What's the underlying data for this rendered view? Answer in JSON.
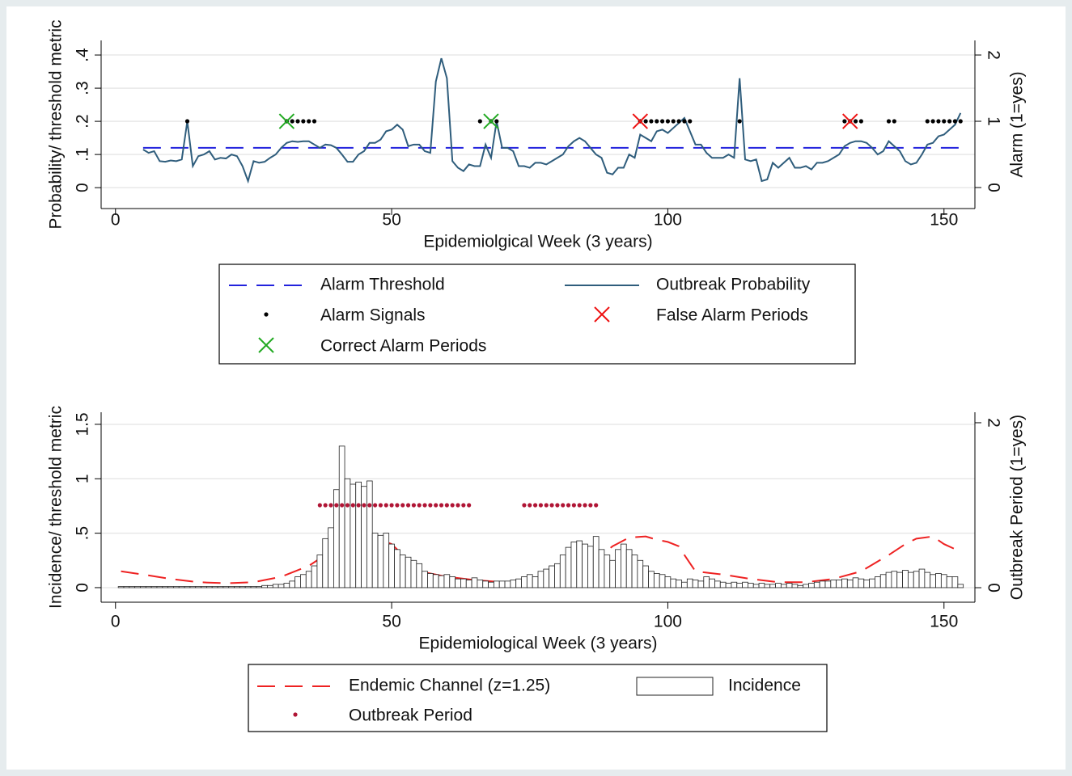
{
  "chart_data": [
    {
      "type": "combo",
      "xlabel": "Epidemiolgical Week (3 years)",
      "ylabel": "Probability/ threshold metric",
      "y2label": "Alarm (1=yes)",
      "xlim": [
        -2.6,
        155.6
      ],
      "xticks": [
        0,
        50,
        100,
        150
      ],
      "ylim": [
        -0.063,
        0.444
      ],
      "yticks": [
        0,
        {
          "value": 0.1,
          "label": ".1"
        },
        {
          "value": 0.2,
          "label": ".2"
        },
        {
          "value": 0.3,
          "label": ".3"
        },
        {
          "value": 0.4,
          "label": ".4"
        }
      ],
      "y2lim": [
        -0.317,
        2.22
      ],
      "y2ticks": [
        0,
        1,
        2
      ],
      "grid": true,
      "series": [
        {
          "name": "Alarm Threshold",
          "type": "line",
          "dash": true,
          "color": "#2222dd",
          "x": [
            5,
            153
          ],
          "values": [
            0.12,
            0.12
          ]
        },
        {
          "name": "Outbreak Probability",
          "type": "line",
          "color": "#2f5d7c",
          "x": [
            5,
            6,
            7,
            8,
            9,
            10,
            11,
            12,
            13,
            14,
            15,
            16,
            17,
            18,
            19,
            20,
            21,
            22,
            23,
            24,
            25,
            26,
            27,
            28,
            29,
            30,
            31,
            32,
            33,
            34,
            35,
            36,
            37,
            38,
            39,
            40,
            41,
            42,
            43,
            44,
            45,
            46,
            47,
            48,
            49,
            50,
            51,
            52,
            53,
            54,
            55,
            56,
            57,
            58,
            59,
            60,
            61,
            62,
            63,
            64,
            65,
            66,
            67,
            68,
            69,
            70,
            71,
            72,
            73,
            74,
            75,
            76,
            77,
            78,
            79,
            80,
            81,
            82,
            83,
            84,
            85,
            86,
            87,
            88,
            89,
            90,
            91,
            92,
            93,
            94,
            95,
            96,
            97,
            98,
            99,
            100,
            101,
            102,
            103,
            104,
            105,
            106,
            107,
            108,
            109,
            110,
            111,
            112,
            113,
            114,
            115,
            116,
            117,
            118,
            119,
            120,
            121,
            122,
            123,
            124,
            125,
            126,
            127,
            128,
            129,
            130,
            131,
            132,
            133,
            134,
            135,
            136,
            137,
            138,
            139,
            140,
            141,
            142,
            143,
            144,
            145,
            146,
            147,
            148,
            149,
            150,
            151,
            152,
            153
          ],
          "values": [
            0.115,
            0.105,
            0.11,
            0.08,
            0.078,
            0.082,
            0.08,
            0.085,
            0.2,
            0.065,
            0.095,
            0.1,
            0.11,
            0.085,
            0.09,
            0.088,
            0.1,
            0.095,
            0.065,
            0.02,
            0.08,
            0.075,
            0.078,
            0.09,
            0.1,
            0.12,
            0.135,
            0.14,
            0.138,
            0.14,
            0.14,
            0.13,
            0.12,
            0.13,
            0.128,
            0.12,
            0.1,
            0.078,
            0.078,
            0.1,
            0.11,
            0.135,
            0.135,
            0.145,
            0.17,
            0.175,
            0.19,
            0.175,
            0.125,
            0.13,
            0.13,
            0.11,
            0.105,
            0.32,
            0.39,
            0.33,
            0.08,
            0.06,
            0.05,
            0.07,
            0.065,
            0.065,
            0.13,
            0.09,
            0.2,
            0.12,
            0.12,
            0.11,
            0.065,
            0.065,
            0.06,
            0.075,
            0.075,
            0.07,
            0.08,
            0.09,
            0.1,
            0.125,
            0.14,
            0.15,
            0.14,
            0.12,
            0.1,
            0.09,
            0.045,
            0.04,
            0.06,
            0.06,
            0.1,
            0.09,
            0.16,
            0.15,
            0.14,
            0.17,
            0.175,
            0.165,
            0.18,
            0.195,
            0.21,
            0.17,
            0.13,
            0.13,
            0.105,
            0.09,
            0.09,
            0.09,
            0.1,
            0.09,
            0.33,
            0.085,
            0.08,
            0.085,
            0.02,
            0.025,
            0.075,
            0.06,
            0.075,
            0.09,
            0.06,
            0.06,
            0.065,
            0.055,
            0.075,
            0.075,
            0.08,
            0.09,
            0.1,
            0.125,
            0.135,
            0.14,
            0.14,
            0.135,
            0.12,
            0.1,
            0.11,
            0.14,
            0.125,
            0.11,
            0.08,
            0.07,
            0.075,
            0.1,
            0.13,
            0.135,
            0.155,
            0.16,
            0.175,
            0.19,
            0.225
          ]
        },
        {
          "name": "Alarm Signals",
          "type": "scatter",
          "marker": "dot",
          "axis": "y2",
          "color": "#000000",
          "x": [
            13,
            31,
            32,
            33,
            34,
            35,
            36,
            66,
            68,
            69,
            95,
            96,
            97,
            98,
            99,
            100,
            101,
            102,
            103,
            104,
            113,
            132,
            133,
            134,
            135,
            140,
            141,
            147,
            148,
            149,
            150,
            151,
            152,
            153
          ],
          "values": [
            1,
            1,
            1,
            1,
            1,
            1,
            1,
            1,
            1,
            1,
            1,
            1,
            1,
            1,
            1,
            1,
            1,
            1,
            1,
            1,
            1,
            1,
            1,
            1,
            1,
            1,
            1,
            1,
            1,
            1,
            1,
            1,
            1,
            1
          ]
        },
        {
          "name": "False Alarm Periods",
          "type": "scatter",
          "marker": "x",
          "axis": "y2",
          "color": "#ee1111",
          "x": [
            95,
            133
          ],
          "values": [
            1,
            1
          ]
        },
        {
          "name": "Correct Alarm Periods",
          "type": "scatter",
          "marker": "x",
          "axis": "y2",
          "color": "#22aa22",
          "x": [
            31,
            68
          ],
          "values": [
            1,
            1
          ]
        }
      ]
    },
    {
      "type": "combo",
      "xlabel": "Epidemiological Week (3 years)",
      "ylabel": "Incidence/ threshold metric",
      "y2label": "Outbreak Period (1=yes)",
      "xlim": [
        -2.6,
        155.6
      ],
      "xticks": [
        0,
        50,
        100,
        150
      ],
      "ylim": [
        -0.134,
        1.611
      ],
      "yticks": [
        0,
        {
          "value": 0.5,
          "label": ".5"
        },
        1,
        1.5
      ],
      "y2lim": [
        -0.176,
        2.127
      ],
      "y2ticks": [
        0,
        2
      ],
      "grid": true,
      "series": [
        {
          "name": "Endemic Channel (z=1.25)",
          "type": "line",
          "dash": true,
          "color": "#ee2222",
          "x": [
            1,
            5,
            10,
            15,
            20,
            25,
            30,
            35,
            38,
            40,
            42,
            45,
            48,
            50,
            52,
            55,
            60,
            65,
            70,
            75,
            80,
            85,
            88,
            90,
            93,
            96,
            98,
            100,
            102,
            103,
            105,
            110,
            115,
            120,
            125,
            130,
            135,
            140,
            143,
            145,
            148,
            150,
            153
          ],
          "values": [
            0.15,
            0.12,
            0.08,
            0.05,
            0.04,
            0.05,
            0.1,
            0.2,
            0.3,
            0.38,
            0.44,
            0.47,
            0.44,
            0.4,
            0.3,
            0.15,
            0.1,
            0.07,
            0.05,
            0.06,
            0.1,
            0.2,
            0.3,
            0.38,
            0.46,
            0.47,
            0.44,
            0.42,
            0.38,
            0.3,
            0.15,
            0.12,
            0.08,
            0.05,
            0.05,
            0.08,
            0.15,
            0.3,
            0.4,
            0.45,
            0.47,
            0.4,
            0.33
          ]
        },
        {
          "name": "Incidence",
          "type": "bar",
          "color": "#ffffff",
          "x": [
            1,
            2,
            3,
            4,
            5,
            6,
            7,
            8,
            9,
            10,
            11,
            12,
            13,
            14,
            15,
            16,
            17,
            18,
            19,
            20,
            21,
            22,
            23,
            24,
            25,
            26,
            27,
            28,
            29,
            30,
            31,
            32,
            33,
            34,
            35,
            36,
            37,
            38,
            39,
            40,
            41,
            42,
            43,
            44,
            45,
            46,
            47,
            48,
            49,
            50,
            51,
            52,
            53,
            54,
            55,
            56,
            57,
            58,
            59,
            60,
            61,
            62,
            63,
            64,
            65,
            66,
            67,
            68,
            69,
            70,
            71,
            72,
            73,
            74,
            75,
            76,
            77,
            78,
            79,
            80,
            81,
            82,
            83,
            84,
            85,
            86,
            87,
            88,
            89,
            90,
            91,
            92,
            93,
            94,
            95,
            96,
            97,
            98,
            99,
            100,
            101,
            102,
            103,
            104,
            105,
            106,
            107,
            108,
            109,
            110,
            111,
            112,
            113,
            114,
            115,
            116,
            117,
            118,
            119,
            120,
            121,
            122,
            123,
            124,
            125,
            126,
            127,
            128,
            129,
            130,
            131,
            132,
            133,
            134,
            135,
            136,
            137,
            138,
            139,
            140,
            141,
            142,
            143,
            144,
            145,
            146,
            147,
            148,
            149,
            150,
            151,
            152,
            153
          ],
          "values": [
            0.01,
            0.01,
            0.01,
            0.01,
            0.01,
            0.01,
            0.01,
            0.01,
            0.01,
            0.01,
            0.01,
            0.01,
            0.01,
            0.01,
            0.01,
            0.01,
            0.01,
            0.01,
            0.01,
            0.01,
            0.01,
            0.01,
            0.01,
            0.01,
            0.01,
            0.01,
            0.02,
            0.02,
            0.03,
            0.03,
            0.04,
            0.06,
            0.1,
            0.12,
            0.15,
            0.2,
            0.3,
            0.45,
            0.55,
            0.9,
            1.3,
            1.0,
            0.95,
            0.97,
            0.93,
            0.98,
            0.5,
            0.48,
            0.5,
            0.4,
            0.35,
            0.3,
            0.28,
            0.25,
            0.22,
            0.15,
            0.13,
            0.12,
            0.11,
            0.12,
            0.1,
            0.08,
            0.08,
            0.07,
            0.09,
            0.07,
            0.06,
            0.05,
            0.06,
            0.06,
            0.06,
            0.07,
            0.08,
            0.1,
            0.12,
            0.1,
            0.15,
            0.17,
            0.2,
            0.22,
            0.3,
            0.37,
            0.42,
            0.43,
            0.4,
            0.38,
            0.47,
            0.35,
            0.3,
            0.25,
            0.35,
            0.4,
            0.35,
            0.3,
            0.25,
            0.2,
            0.15,
            0.13,
            0.12,
            0.1,
            0.08,
            0.07,
            0.05,
            0.08,
            0.07,
            0.06,
            0.1,
            0.08,
            0.06,
            0.05,
            0.04,
            0.05,
            0.04,
            0.05,
            0.04,
            0.03,
            0.04,
            0.03,
            0.03,
            0.04,
            0.03,
            0.04,
            0.03,
            0.02,
            0.03,
            0.04,
            0.05,
            0.06,
            0.06,
            0.07,
            0.07,
            0.08,
            0.07,
            0.09,
            0.08,
            0.07,
            0.08,
            0.1,
            0.12,
            0.14,
            0.15,
            0.14,
            0.16,
            0.14,
            0.15,
            0.17,
            0.14,
            0.12,
            0.13,
            0.12,
            0.1,
            0.1,
            0.03
          ]
        },
        {
          "name": "Outbreak Period",
          "type": "scatter",
          "marker": "dot",
          "axis": "y2",
          "color": "#b01535",
          "x": [
            37,
            38,
            39,
            40,
            41,
            42,
            43,
            44,
            45,
            46,
            47,
            48,
            49,
            50,
            51,
            52,
            53,
            54,
            55,
            56,
            57,
            58,
            59,
            60,
            61,
            62,
            63,
            64,
            74,
            75,
            76,
            77,
            78,
            79,
            80,
            81,
            82,
            83,
            84,
            85,
            86,
            87
          ],
          "values": [
            1,
            1,
            1,
            1,
            1,
            1,
            1,
            1,
            1,
            1,
            1,
            1,
            1,
            1,
            1,
            1,
            1,
            1,
            1,
            1,
            1,
            1,
            1,
            1,
            1,
            1,
            1,
            1,
            1,
            1,
            1,
            1,
            1,
            1,
            1,
            1,
            1,
            1,
            1,
            1,
            1,
            1
          ]
        }
      ]
    }
  ]
}
